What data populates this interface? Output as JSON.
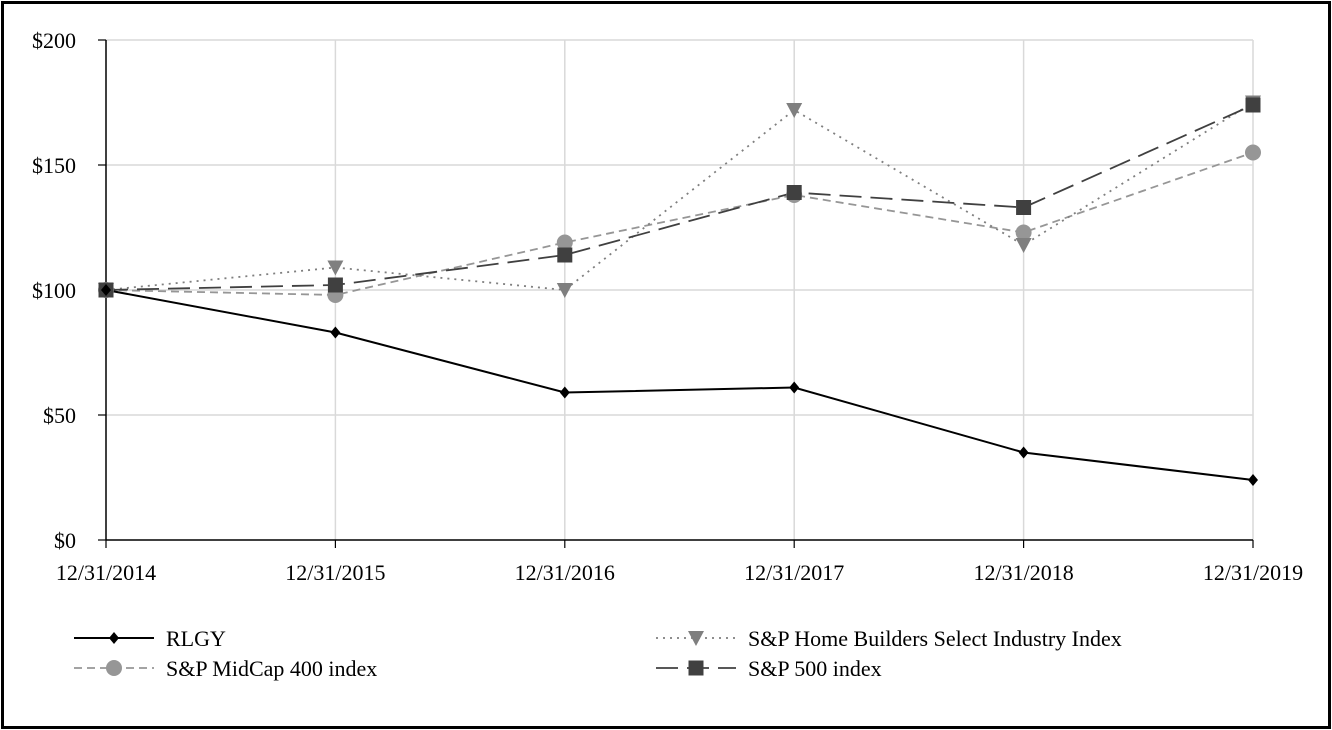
{
  "chart_data": {
    "type": "line",
    "title": "",
    "xlabel": "",
    "ylabel": "",
    "categories": [
      "12/31/2014",
      "12/31/2015",
      "12/31/2016",
      "12/31/2017",
      "12/31/2018",
      "12/31/2019"
    ],
    "y_ticks": [
      "$0",
      "$50",
      "$100",
      "$150",
      "$200"
    ],
    "ylim": [
      0,
      200
    ],
    "grid": true,
    "legend_position": "bottom",
    "series": [
      {
        "name": "RLGY",
        "values": [
          100,
          83,
          59,
          61,
          35,
          24
        ],
        "color": "#000000",
        "marker": "diamond",
        "line_style": "solid"
      },
      {
        "name": "S&P Home Builders Select Industry Index",
        "values": [
          100,
          109,
          100,
          172,
          118,
          175
        ],
        "color": "#7f7f7f",
        "marker": "triangle-down",
        "line_style": "dotted"
      },
      {
        "name": "S&P MidCap 400 index",
        "values": [
          100,
          98,
          119,
          138,
          123,
          155
        ],
        "color": "#969696",
        "marker": "circle",
        "line_style": "dashed"
      },
      {
        "name": "S&P 500 index",
        "values": [
          100,
          102,
          114,
          139,
          133,
          174
        ],
        "color": "#404040",
        "marker": "square",
        "line_style": "long-dash"
      }
    ]
  }
}
